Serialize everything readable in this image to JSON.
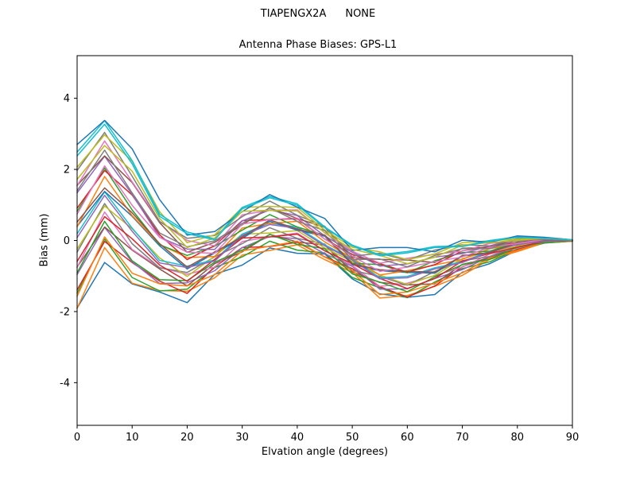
{
  "figure": {
    "suptitle_left": "TIAPENGX2A",
    "suptitle_right": "NONE",
    "title": "Antenna Phase Biases: GPS-L1",
    "xlabel": "Elvation angle (degrees)",
    "ylabel": "Bias (mm)"
  },
  "chart_data": {
    "type": "line",
    "title": "Antenna Phase Biases: GPS-L1",
    "suptitle": "TIAPENGX2A      NONE",
    "xlabel": "Elvation angle (degrees)",
    "ylabel": "Bias (mm)",
    "xlim": [
      0,
      90
    ],
    "ylim": [
      -5.2,
      5.2
    ],
    "xticks": [
      0,
      10,
      20,
      30,
      40,
      50,
      60,
      70,
      80,
      90
    ],
    "yticks": [
      -4,
      -2,
      0,
      2,
      4
    ],
    "grid": false,
    "legend": "none",
    "x": [
      0,
      5,
      10,
      15,
      20,
      25,
      30,
      35,
      40,
      45,
      50,
      55,
      60,
      65,
      70,
      75,
      80,
      85,
      90
    ],
    "series": [
      {
        "name": "line-01",
        "color": "#1f77b4",
        "values": [
          -1.9,
          -0.62,
          -1.22,
          -1.45,
          -1.75,
          -0.95,
          -0.69,
          -0.21,
          -0.36,
          -0.38,
          -1.08,
          -1.5,
          -1.6,
          -1.52,
          -0.89,
          -0.65,
          -0.27,
          -0.07,
          -0.02
        ]
      },
      {
        "name": "line-02",
        "color": "#ff7f0e",
        "values": [
          -1.91,
          -0.2,
          -1.2,
          -1.41,
          -1.43,
          -1.05,
          -0.41,
          -0.28,
          -0.12,
          -0.54,
          -0.9,
          -1.62,
          -1.55,
          -1.29,
          -0.98,
          -0.53,
          -0.31,
          -0.06,
          -0.02
        ]
      },
      {
        "name": "line-03",
        "color": "#2ca02c",
        "values": [
          -1.48,
          0.04,
          -1.04,
          -1.42,
          -1.37,
          -0.76,
          -0.46,
          -0.02,
          -0.27,
          -0.35,
          -1.04,
          -1.33,
          -1.61,
          -1.17,
          -0.79,
          -0.6,
          -0.24,
          -0.07,
          -0.02
        ]
      },
      {
        "name": "line-04",
        "color": "#d62728",
        "values": [
          -1.39,
          -0.03,
          -0.62,
          -1.14,
          -1.49,
          -0.74,
          -0.2,
          -0.17,
          -0.05,
          -0.46,
          -0.79,
          -1.3,
          -1.59,
          -1.28,
          -0.74,
          -0.46,
          -0.26,
          -0.05,
          -0.01
        ]
      },
      {
        "name": "line-05",
        "color": "#9467bd",
        "values": [
          -0.96,
          0.37,
          -0.6,
          -1.21,
          -1.19,
          -0.85,
          -0.2,
          0.11,
          0.05,
          -0.37,
          -0.73,
          -1.37,
          -1.36,
          -1.07,
          -0.82,
          -0.45,
          -0.2,
          -0.06,
          -0.01
        ]
      },
      {
        "name": "line-06",
        "color": "#8c564b",
        "values": [
          -0.75,
          0.38,
          -0.27,
          -0.8,
          -1.28,
          -0.65,
          -0.32,
          0.17,
          -0.04,
          -0.13,
          -0.88,
          -1.18,
          -1.25,
          -1.22,
          -0.67,
          -0.5,
          -0.17,
          -0.03,
          -0.01
        ]
      },
      {
        "name": "line-07",
        "color": "#e377c2",
        "values": [
          -0.76,
          0.8,
          -0.25,
          -0.76,
          -0.95,
          -0.75,
          -0.03,
          0.1,
          0.21,
          -0.29,
          -0.7,
          -1.29,
          -1.2,
          -0.99,
          -0.75,
          -0.38,
          -0.21,
          -0.02,
          -0.01
        ]
      },
      {
        "name": "line-08",
        "color": "#7f7f7f",
        "values": [
          -0.33,
          1.04,
          -0.09,
          -0.77,
          -0.9,
          -0.46,
          -0.09,
          0.36,
          0.06,
          -0.1,
          -0.84,
          -1.01,
          -1.26,
          -0.87,
          -0.57,
          -0.45,
          -0.14,
          -0.03,
          -0.01
        ]
      },
      {
        "name": "line-09",
        "color": "#bcbd22",
        "values": [
          -0.24,
          0.97,
          0.33,
          -0.49,
          -1.01,
          -0.44,
          0.18,
          0.21,
          0.28,
          -0.21,
          -0.59,
          -0.97,
          -1.24,
          -0.98,
          -0.51,
          -0.31,
          -0.16,
          -0.01,
          0
        ]
      },
      {
        "name": "line-10",
        "color": "#17becf",
        "values": [
          0.19,
          1.37,
          0.35,
          -0.56,
          -0.72,
          -0.55,
          0.18,
          0.49,
          0.38,
          -0.12,
          -0.53,
          -1.05,
          -1.01,
          -0.77,
          -0.6,
          -0.3,
          -0.1,
          -0.02,
          0
        ]
      },
      {
        "name": "line-11",
        "color": "#1f77b4",
        "values": [
          0.4,
          1.38,
          0.68,
          -0.15,
          -0.8,
          -0.35,
          0.06,
          0.54,
          0.29,
          0.12,
          -0.68,
          -0.85,
          -0.9,
          -0.92,
          -0.44,
          -0.35,
          -0.07,
          0.01,
          0
        ]
      },
      {
        "name": "line-12",
        "color": "#ff7f0e",
        "values": [
          0.39,
          1.8,
          0.7,
          -0.11,
          -0.48,
          -0.45,
          0.35,
          0.48,
          0.54,
          -0.04,
          -0.5,
          -0.97,
          -0.85,
          -0.69,
          -0.53,
          -0.23,
          -0.11,
          0.02,
          0
        ]
      },
      {
        "name": "line-13",
        "color": "#2ca02c",
        "values": [
          0.82,
          2.04,
          0.86,
          -0.12,
          -0.42,
          -0.16,
          0.29,
          0.73,
          0.38,
          0.15,
          -0.64,
          -0.68,
          -0.91,
          -0.57,
          -0.34,
          -0.3,
          -0.04,
          0.01,
          0
        ]
      },
      {
        "name": "line-14",
        "color": "#d62728",
        "values": [
          0.91,
          1.97,
          1.28,
          0.16,
          -0.54,
          -0.14,
          0.56,
          0.59,
          0.61,
          0.04,
          -0.39,
          -0.65,
          -0.89,
          -0.68,
          -0.29,
          -0.16,
          -0.06,
          0.03,
          0.01
        ]
      },
      {
        "name": "line-15",
        "color": "#9467bd",
        "values": [
          1.34,
          2.37,
          1.3,
          0.09,
          -0.24,
          -0.25,
          0.55,
          0.86,
          0.7,
          0.13,
          -0.33,
          -0.72,
          -0.66,
          -0.47,
          -0.37,
          -0.15,
          0,
          0.02,
          0.01
        ]
      },
      {
        "name": "line-16",
        "color": "#8c564b",
        "values": [
          1.55,
          2.38,
          1.63,
          0.5,
          -0.33,
          -0.05,
          0.44,
          0.92,
          0.62,
          0.37,
          -0.48,
          -0.53,
          -0.55,
          -0.62,
          -0.22,
          -0.2,
          0.03,
          0.05,
          0.01
        ]
      },
      {
        "name": "line-17",
        "color": "#e377c2",
        "values": [
          1.54,
          2.8,
          1.65,
          0.54,
          0,
          -0.15,
          0.72,
          0.85,
          0.86,
          0.21,
          -0.3,
          -0.64,
          -0.5,
          -0.39,
          -0.3,
          -0.08,
          -0.01,
          0.06,
          0.01
        ]
      },
      {
        "name": "line-18",
        "color": "#7f7f7f",
        "values": [
          1.97,
          3.04,
          1.81,
          0.53,
          0.06,
          0.14,
          0.67,
          1.11,
          0.71,
          0.4,
          -0.44,
          -0.36,
          -0.56,
          -0.27,
          -0.12,
          -0.15,
          0.06,
          0.05,
          0.01
        ]
      },
      {
        "name": "line-19",
        "color": "#bcbd22",
        "values": [
          2.06,
          2.97,
          2.23,
          0.81,
          -0.06,
          0.16,
          0.93,
          0.96,
          0.93,
          0.29,
          -0.19,
          -0.32,
          -0.54,
          -0.38,
          -0.06,
          -0.01,
          0.04,
          0.07,
          0.02
        ]
      },
      {
        "name": "line-20",
        "color": "#17becf",
        "values": [
          2.49,
          3.37,
          2.25,
          0.74,
          0.24,
          0.05,
          0.93,
          1.24,
          1.03,
          0.38,
          -0.13,
          -0.4,
          -0.31,
          -0.17,
          -0.15,
          0,
          0.1,
          0.06,
          0.02
        ]
      },
      {
        "name": "line-21",
        "color": "#1f77b4",
        "values": [
          2.7,
          3.38,
          2.58,
          1.15,
          0.15,
          0.25,
          0.81,
          1.29,
          0.94,
          0.62,
          -0.28,
          -0.2,
          -0.2,
          -0.32,
          0.01,
          -0.05,
          0.13,
          0.09,
          0.02
        ]
      },
      {
        "name": "line-22",
        "color": "#ff7f0e",
        "values": [
          -1.57,
          0.1,
          -0.92,
          -1.22,
          -1.28,
          -0.96,
          -0.29,
          -0.16,
          -0.02,
          -0.47,
          -0.84,
          -1.52,
          -1.45,
          -1.2,
          -0.91,
          -0.49,
          -0.28,
          -0.05,
          -0.02
        ]
      },
      {
        "name": "line-23",
        "color": "#2ca02c",
        "values": [
          -0.91,
          0.54,
          -0.57,
          -1.1,
          -1.13,
          -0.61,
          -0.27,
          0.17,
          -0.11,
          -0.23,
          -0.94,
          -1.17,
          -1.44,
          -1.02,
          -0.68,
          -0.53,
          -0.19,
          -0.05,
          -0.01
        ]
      },
      {
        "name": "line-24",
        "color": "#d62728",
        "values": [
          -0.59,
          0.67,
          0.05,
          -0.69,
          -1.15,
          -0.53,
          0.07,
          0.1,
          0.18,
          -0.29,
          -0.65,
          -1.07,
          -1.35,
          -1.07,
          -0.58,
          -0.36,
          -0.19,
          -0.02,
          0
        ]
      },
      {
        "name": "line-25",
        "color": "#9467bd",
        "values": [
          0.08,
          1.27,
          0.26,
          -0.63,
          -0.76,
          -0.58,
          0.14,
          0.45,
          0.34,
          -0.15,
          -0.55,
          -1.08,
          -1.05,
          -0.8,
          -0.62,
          -0.32,
          -0.11,
          -0.02,
          0
        ]
      },
      {
        "name": "line-26",
        "color": "#8c564b",
        "values": [
          0.52,
          1.48,
          0.78,
          -0.09,
          -0.75,
          -0.32,
          0.1,
          0.58,
          0.32,
          0.15,
          -0.66,
          -0.82,
          -0.87,
          -0.89,
          -0.42,
          -0.34,
          -0.06,
          0.01,
          0
        ]
      },
      {
        "name": "line-27",
        "color": "#e377c2",
        "values": [
          0.74,
          2.1,
          0.99,
          0.09,
          -0.33,
          -0.36,
          0.46,
          0.59,
          0.63,
          0.04,
          -0.44,
          -0.87,
          -0.75,
          -0.6,
          -0.46,
          -0.19,
          -0.08,
          0.03,
          0.01
        ]
      },
      {
        "name": "line-28",
        "color": "#7f7f7f",
        "values": [
          1.4,
          2.54,
          1.34,
          0.21,
          -0.18,
          -0.01,
          0.48,
          0.92,
          0.54,
          0.28,
          -0.54,
          -0.52,
          -0.74,
          -0.42,
          -0.23,
          -0.23,
          0.01,
          0.03,
          0.01
        ]
      },
      {
        "name": "line-29",
        "color": "#bcbd22",
        "values": [
          1.72,
          2.67,
          1.95,
          0.62,
          -0.2,
          0.07,
          0.82,
          0.85,
          0.83,
          0.22,
          -0.25,
          -0.42,
          -0.65,
          -0.47,
          -0.13,
          -0.06,
          0.01,
          0.06,
          0.02
        ]
      },
      {
        "name": "line-30",
        "color": "#17becf",
        "values": [
          2.38,
          3.27,
          2.16,
          0.68,
          0.19,
          0.02,
          0.89,
          1.2,
          0.99,
          0.36,
          -0.15,
          -0.43,
          -0.35,
          -0.2,
          -0.17,
          -0.02,
          0.09,
          0.06,
          0.02
        ]
      }
    ]
  }
}
